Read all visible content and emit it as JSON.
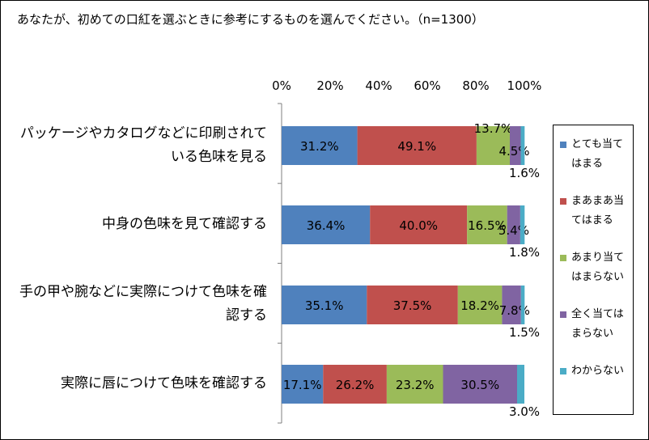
{
  "question": "あなたが、初めての口紅を選ぶときに参考にするものを選んでください。（n=1300）",
  "chart_data": {
    "type": "bar",
    "orientation": "horizontal",
    "stacked": "percent",
    "xlim": [
      0,
      100
    ],
    "x_ticks": [
      "0%",
      "20%",
      "40%",
      "60%",
      "80%",
      "100%"
    ],
    "grid": false,
    "legend_position": "right",
    "categories": [
      "パッケージやカタログなどに印刷されている色味を見る",
      "中身の色味を見て確認する",
      "手の甲や腕などに実際につけて色味を確認する",
      "実際に唇につけて色味を確認する"
    ],
    "series": [
      {
        "name": "とても当てはまる",
        "color": "#4F81BD",
        "values": [
          31.2,
          36.4,
          35.1,
          17.1
        ],
        "labels": [
          "31.2%",
          "36.4%",
          "35.1%",
          "17.1%"
        ]
      },
      {
        "name": "まあまあ当てはまる",
        "color": "#C0504D",
        "values": [
          49.1,
          40.0,
          37.5,
          26.2
        ],
        "labels": [
          "49.1%",
          "40.0%",
          "37.5%",
          "26.2%"
        ]
      },
      {
        "name": "あまり当てはまらない",
        "color": "#9BBB59",
        "values": [
          13.7,
          16.5,
          18.2,
          23.2
        ],
        "labels": [
          "13.7%",
          "16.5%",
          "18.2%",
          "23.2%"
        ]
      },
      {
        "name": "全く当てはまらない",
        "color": "#8064A2",
        "values": [
          4.5,
          5.4,
          7.8,
          30.5
        ],
        "labels": [
          "4.5%",
          "5.4%",
          "7.8%",
          "30.5%"
        ]
      },
      {
        "name": "わからない",
        "color": "#4BACC6",
        "values": [
          1.6,
          1.8,
          1.5,
          3.0
        ],
        "labels": [
          "1.6%",
          "1.8%",
          "1.5%",
          "3.0%"
        ]
      }
    ]
  }
}
